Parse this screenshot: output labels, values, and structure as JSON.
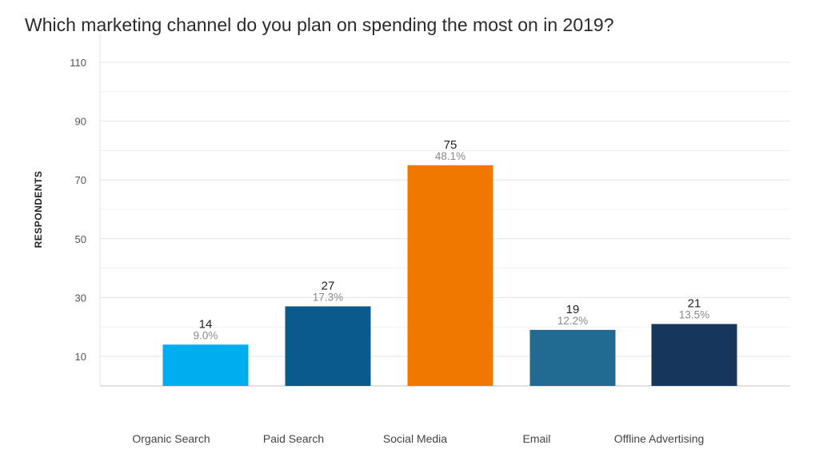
{
  "chart_data": {
    "type": "bar",
    "title": "Which marketing channel do you plan on spending the most on in 2019?",
    "xlabel": "",
    "ylabel": "RESPONDENTS",
    "categories": [
      "Organic Search",
      "Paid Search",
      "Social Media",
      "Email",
      "Offline Advertising"
    ],
    "values": [
      14,
      27,
      75,
      19,
      21
    ],
    "percent_labels": [
      "9.0%",
      "17.3%",
      "48.1%",
      "12.2%",
      "13.5%"
    ],
    "colors": [
      "#00aeef",
      "#0b5a8e",
      "#f07800",
      "#216b92",
      "#16365c"
    ],
    "yticks": [
      10,
      30,
      50,
      70,
      90,
      110
    ],
    "ylim": [
      0,
      120
    ],
    "grid": true,
    "legend": "none"
  }
}
